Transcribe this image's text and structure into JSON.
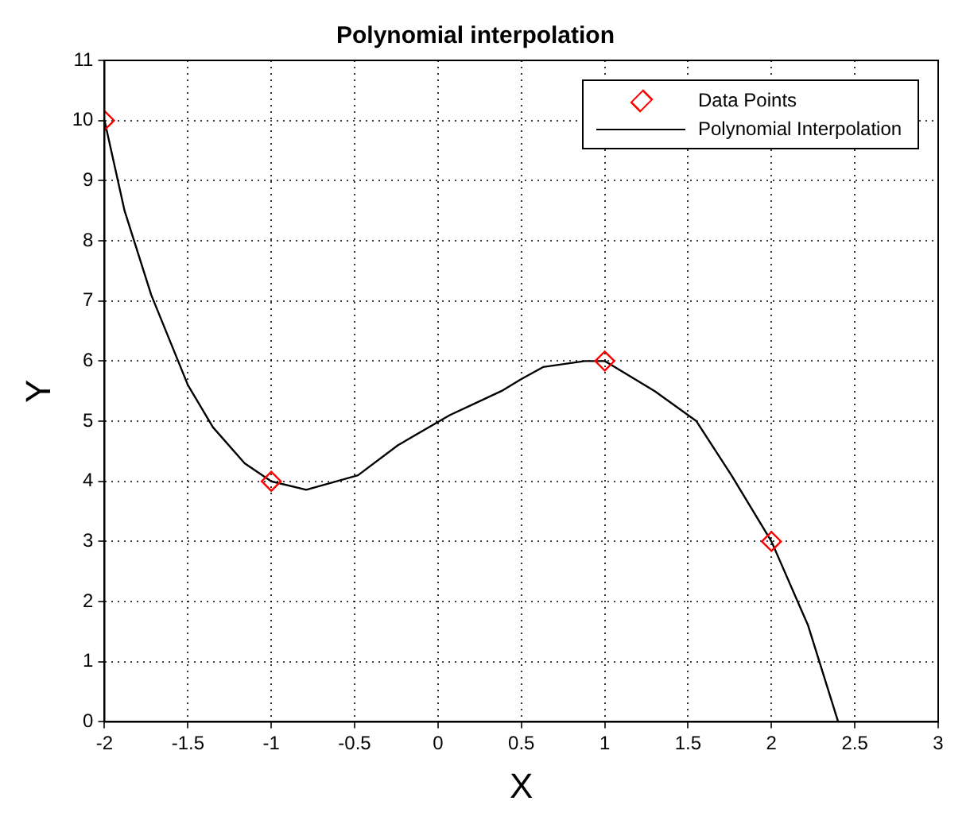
{
  "chart_data": {
    "type": "scatter",
    "title": "Polynomial interpolation",
    "xlabel": "X",
    "ylabel": "Y",
    "xlim": [
      -2,
      3
    ],
    "xticks": [
      -2,
      -1.5,
      -1,
      -0.5,
      0,
      0.5,
      1,
      1.5,
      2,
      2.5,
      3
    ],
    "ylim": [
      0,
      11
    ],
    "yticks": [
      0,
      1,
      2,
      3,
      4,
      5,
      6,
      7,
      8,
      9,
      10,
      11
    ],
    "grid": true,
    "legend": "top right",
    "series": [
      {
        "name": "Data Points",
        "type": "scatter",
        "color": "#ff0000",
        "marker": "diamond",
        "x": [
          -2,
          -1,
          1,
          2
        ],
        "values": [
          10,
          4,
          6,
          3
        ]
      },
      {
        "name": "Polynomial Interpolation",
        "type": "line",
        "color": "#000000",
        "marker": "none",
        "line_style": "solid",
        "x": [
          -2,
          -1.88,
          -1.72,
          -1.5,
          -1.35,
          -1.16,
          -1,
          -0.79,
          -0.48,
          -0.24,
          0.07,
          0.38,
          0.5,
          0.63,
          0.88,
          1,
          1.3,
          1.55,
          1.76,
          2,
          2.22,
          2.4
        ],
        "values": [
          10,
          8.5,
          7.1,
          5.6,
          4.9,
          4.3,
          4,
          3.86,
          4.1,
          4.6,
          5.1,
          5.5,
          5.7,
          5.9,
          6,
          6,
          5.5,
          5,
          4.1,
          3,
          1.6,
          0
        ]
      }
    ]
  }
}
